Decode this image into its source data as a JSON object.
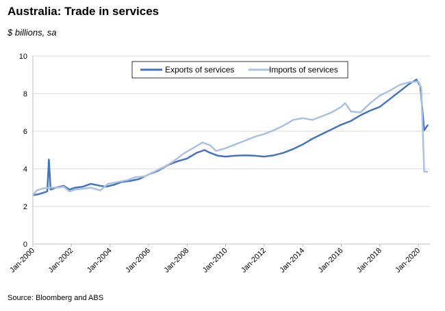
{
  "chart_data": {
    "type": "line",
    "title": "Australia: Trade in services",
    "subtitle": "$ billions, sa",
    "source": "Source: Bloomberg and ABS",
    "ylim": [
      0,
      10
    ],
    "yticks": [
      "0",
      "2",
      "4",
      "6",
      "8",
      "10"
    ],
    "xlim": [
      2000.0,
      2020.6
    ],
    "xticks": [
      "Jan-2000",
      "Jan-2002",
      "Jan-2004",
      "Jan-2006",
      "Jan-2008",
      "Jan-2010",
      "Jan-2012",
      "Jan-2014",
      "Jan-2016",
      "Jan-2018",
      "Jan-2020"
    ],
    "grid": true,
    "legend_position": "top-center",
    "series": [
      {
        "name": "Exports of services",
        "color": "#4472C4",
        "points": [
          [
            2000.0,
            2.6
          ],
          [
            2000.3,
            2.65
          ],
          [
            2000.6,
            2.75
          ],
          [
            2000.75,
            2.8
          ],
          [
            2000.83,
            4.5
          ],
          [
            2000.92,
            2.9
          ],
          [
            2001.2,
            3.0
          ],
          [
            2001.6,
            3.1
          ],
          [
            2001.9,
            2.9
          ],
          [
            2002.2,
            3.0
          ],
          [
            2002.6,
            3.05
          ],
          [
            2003.0,
            3.2
          ],
          [
            2003.5,
            3.1
          ],
          [
            2003.8,
            3.05
          ],
          [
            2004.2,
            3.15
          ],
          [
            2004.6,
            3.3
          ],
          [
            2005.0,
            3.35
          ],
          [
            2005.5,
            3.45
          ],
          [
            2006.0,
            3.7
          ],
          [
            2006.5,
            3.9
          ],
          [
            2007.0,
            4.2
          ],
          [
            2007.5,
            4.4
          ],
          [
            2008.0,
            4.55
          ],
          [
            2008.5,
            4.85
          ],
          [
            2008.9,
            5.0
          ],
          [
            2009.2,
            4.85
          ],
          [
            2009.6,
            4.7
          ],
          [
            2010.0,
            4.65
          ],
          [
            2010.5,
            4.7
          ],
          [
            2011.0,
            4.72
          ],
          [
            2011.5,
            4.7
          ],
          [
            2012.0,
            4.65
          ],
          [
            2012.5,
            4.72
          ],
          [
            2013.0,
            4.85
          ],
          [
            2013.5,
            5.05
          ],
          [
            2014.0,
            5.3
          ],
          [
            2014.5,
            5.6
          ],
          [
            2015.0,
            5.85
          ],
          [
            2015.5,
            6.1
          ],
          [
            2016.0,
            6.35
          ],
          [
            2016.5,
            6.55
          ],
          [
            2017.0,
            6.85
          ],
          [
            2017.5,
            7.1
          ],
          [
            2018.0,
            7.3
          ],
          [
            2018.5,
            7.7
          ],
          [
            2019.0,
            8.1
          ],
          [
            2019.5,
            8.5
          ],
          [
            2019.9,
            8.75
          ],
          [
            2020.1,
            8.4
          ],
          [
            2020.3,
            6.05
          ],
          [
            2020.5,
            6.35
          ]
        ]
      },
      {
        "name": "Imports of services",
        "color": "#A9C1E3",
        "points": [
          [
            2000.0,
            2.6
          ],
          [
            2000.2,
            2.85
          ],
          [
            2000.5,
            2.95
          ],
          [
            2000.9,
            3.0
          ],
          [
            2001.3,
            3.0
          ],
          [
            2001.6,
            3.05
          ],
          [
            2001.9,
            2.8
          ],
          [
            2002.2,
            2.9
          ],
          [
            2002.7,
            2.95
          ],
          [
            2003.0,
            3.0
          ],
          [
            2003.5,
            2.85
          ],
          [
            2003.9,
            3.2
          ],
          [
            2004.4,
            3.3
          ],
          [
            2004.9,
            3.4
          ],
          [
            2005.3,
            3.55
          ],
          [
            2005.8,
            3.6
          ],
          [
            2006.3,
            3.85
          ],
          [
            2006.8,
            4.1
          ],
          [
            2007.3,
            4.4
          ],
          [
            2007.8,
            4.8
          ],
          [
            2008.3,
            5.1
          ],
          [
            2008.8,
            5.4
          ],
          [
            2009.2,
            5.25
          ],
          [
            2009.5,
            4.95
          ],
          [
            2010.0,
            5.1
          ],
          [
            2010.5,
            5.3
          ],
          [
            2011.0,
            5.5
          ],
          [
            2011.5,
            5.7
          ],
          [
            2012.0,
            5.85
          ],
          [
            2012.5,
            6.05
          ],
          [
            2013.0,
            6.3
          ],
          [
            2013.5,
            6.6
          ],
          [
            2014.0,
            6.7
          ],
          [
            2014.5,
            6.6
          ],
          [
            2015.0,
            6.8
          ],
          [
            2015.5,
            7.0
          ],
          [
            2016.0,
            7.3
          ],
          [
            2016.2,
            7.5
          ],
          [
            2016.5,
            7.05
          ],
          [
            2017.0,
            7.0
          ],
          [
            2017.5,
            7.5
          ],
          [
            2018.0,
            7.9
          ],
          [
            2018.5,
            8.15
          ],
          [
            2019.0,
            8.45
          ],
          [
            2019.5,
            8.6
          ],
          [
            2020.0,
            8.65
          ],
          [
            2020.15,
            8.3
          ],
          [
            2020.3,
            3.85
          ],
          [
            2020.5,
            3.85
          ]
        ]
      }
    ]
  }
}
